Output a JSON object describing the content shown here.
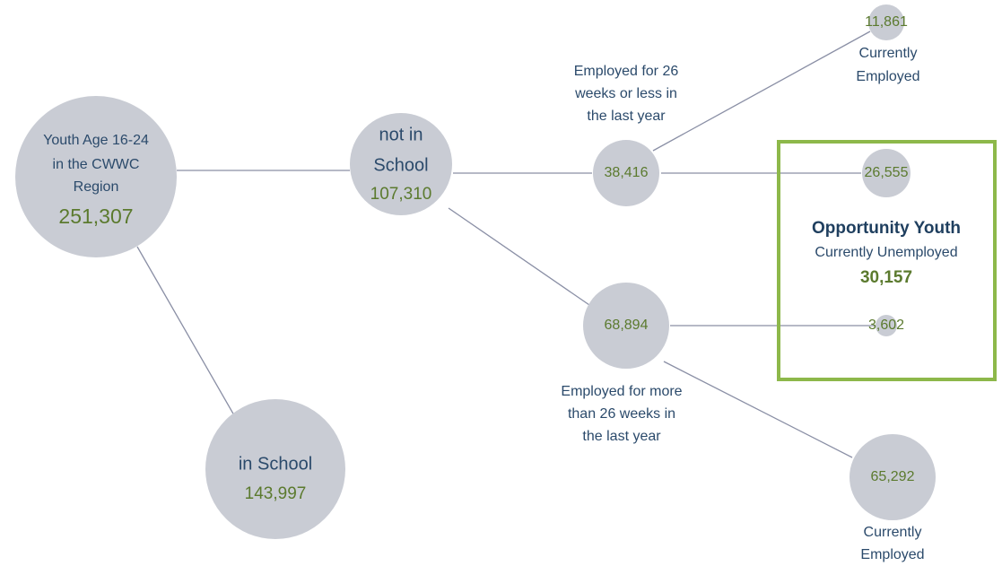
{
  "nodes": [
    {
      "label": [
        "Youth Age 16-24",
        "in the CWWC",
        "Region"
      ],
      "value": "251,307"
    },
    {
      "label": [
        "not in",
        "School"
      ],
      "value": "107,310"
    },
    {
      "label": [
        "in School"
      ],
      "value": "143,997"
    },
    {
      "label": [],
      "value": "38,416"
    },
    {
      "label": [],
      "value": "68,894"
    },
    {
      "label": [],
      "value": "11,861"
    },
    {
      "label": [],
      "value": "26,555"
    },
    {
      "label": [],
      "value": "3,602"
    },
    {
      "label": [],
      "value": "65,292"
    }
  ],
  "annotations": [
    [
      "Employed for 26",
      "weeks or less in",
      "the last year"
    ],
    [
      "Employed for more",
      "than 26 weeks in",
      "the last year"
    ],
    [
      "Currently",
      "Employed"
    ],
    [
      "Currently",
      "Employed"
    ]
  ],
  "highlight": {
    "title": "Opportunity Youth",
    "subtitle": "Currently Unemployed",
    "value": "30,157"
  }
}
